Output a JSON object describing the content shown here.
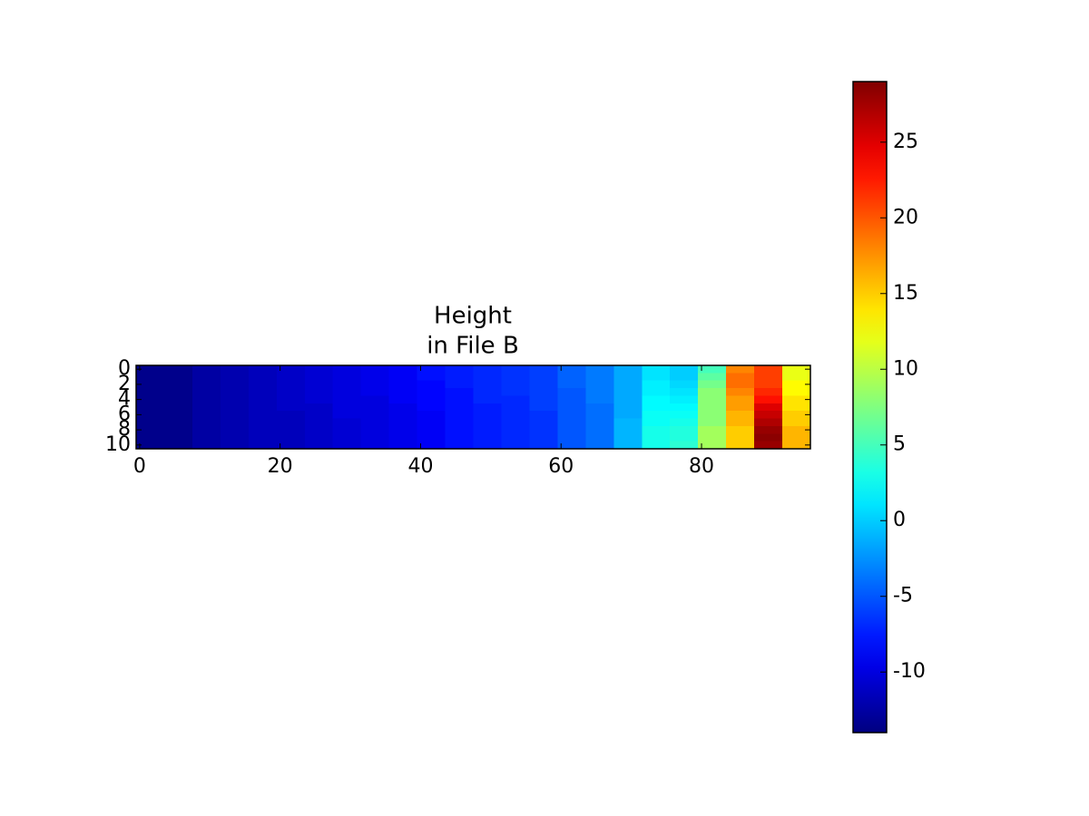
{
  "chart_data": {
    "type": "heatmap",
    "title": [
      "Height",
      "in File B"
    ],
    "colormap": "jet",
    "xbins": [
      -0.5,
      3.5,
      7.5,
      11.5,
      15.5,
      19.5,
      23.5,
      27.5,
      31.5,
      35.5,
      39.5,
      43.5,
      47.5,
      51.5,
      55.5,
      59.5,
      63.5,
      67.5,
      71.5,
      75.5,
      79.5,
      83.5,
      87.5,
      91.5,
      95.5
    ],
    "y": [
      0,
      1,
      2,
      3,
      4,
      5,
      6,
      7,
      8,
      9,
      10
    ],
    "values": [
      [
        -13.5,
        -13.5,
        -12.5,
        -12,
        -11.5,
        -11,
        -10.5,
        -10,
        -9.5,
        -9,
        -8,
        -7.5,
        -7,
        -6.5,
        -6,
        -4.5,
        -3.5,
        -1.5,
        1,
        0,
        5,
        18,
        21,
        12
      ],
      [
        -13.5,
        -13.5,
        -12.5,
        -12,
        -11.5,
        -11,
        -10.5,
        -10,
        -9.5,
        -9,
        -8,
        -7.5,
        -7,
        -6.5,
        -6,
        -4.5,
        -3.5,
        -1.5,
        1,
        0,
        6,
        19,
        21,
        12
      ],
      [
        -13.5,
        -13.5,
        -12.5,
        -12,
        -11.5,
        -11,
        -10.5,
        -10,
        -9.5,
        -9,
        -8.5,
        -7.5,
        -7,
        -6.5,
        -6,
        -4.5,
        -3.5,
        -1.5,
        1.5,
        0.5,
        7,
        19,
        21,
        13
      ],
      [
        -13.5,
        -13.5,
        -12.5,
        -12,
        -11.5,
        -11,
        -10.5,
        -10,
        -9.5,
        -9,
        -8.5,
        -8,
        -7,
        -6.5,
        -6,
        -5,
        -3.5,
        -1.5,
        1.5,
        1,
        8,
        18,
        22,
        13
      ],
      [
        -13.5,
        -13.5,
        -12.5,
        -12,
        -11.5,
        -11,
        -10.5,
        -10,
        -10,
        -9,
        -8.5,
        -8,
        -7,
        -7,
        -6,
        -5,
        -3.5,
        -1.5,
        2,
        1.5,
        8,
        17,
        23,
        14
      ],
      [
        -13.5,
        -13.5,
        -12.5,
        -12,
        -11.5,
        -11,
        -11,
        -10,
        -10,
        -9.5,
        -8.5,
        -8,
        -7.5,
        -7,
        -6,
        -5,
        -4,
        -1.5,
        2,
        2,
        8,
        17,
        25,
        14
      ],
      [
        -13.5,
        -13.5,
        -12.5,
        -12,
        -11.5,
        -11.5,
        -11,
        -10,
        -10,
        -9.5,
        -9,
        -8,
        -7.5,
        -7,
        -6.5,
        -5,
        -4,
        -1.5,
        2.5,
        2.5,
        8,
        16,
        26,
        15
      ],
      [
        -13.5,
        -13.5,
        -12.5,
        -12,
        -11.5,
        -11.5,
        -11,
        -10.5,
        -10,
        -9.5,
        -9,
        -8,
        -7.5,
        -7,
        -6.5,
        -5,
        -4,
        -1,
        2.5,
        3,
        8,
        16,
        27,
        15
      ],
      [
        -13.5,
        -13.5,
        -12.5,
        -12,
        -11.5,
        -11.5,
        -11,
        -10.5,
        -10,
        -9.5,
        -9,
        -8,
        -7.5,
        -7,
        -6.5,
        -5,
        -4,
        -1,
        3,
        3.5,
        9,
        15,
        28,
        16
      ],
      [
        -13.5,
        -13.5,
        -12.5,
        -12,
        -11.5,
        -11.5,
        -11,
        -10.5,
        -10,
        -9.5,
        -9,
        -8,
        -7.5,
        -7,
        -6.5,
        -5,
        -4,
        -1,
        3,
        3.5,
        9,
        15,
        28.5,
        16
      ],
      [
        -13.5,
        -13.5,
        -12.5,
        -12,
        -11.5,
        -11.5,
        -11,
        -10.5,
        -10,
        -9.5,
        -9,
        -8,
        -7.5,
        -7,
        -6.5,
        -5,
        -4,
        -1,
        3,
        4,
        9,
        15,
        28,
        16
      ]
    ],
    "xlim": [
      -0.5,
      95.5
    ],
    "ylim": [
      10.5,
      -0.5
    ],
    "xticks": [
      0,
      20,
      40,
      60,
      80
    ],
    "yticks": [
      0,
      2,
      4,
      6,
      8,
      10
    ],
    "clim": [
      -14,
      29
    ],
    "cticks": [
      -10,
      -5,
      0,
      5,
      10,
      15,
      20,
      25
    ]
  }
}
